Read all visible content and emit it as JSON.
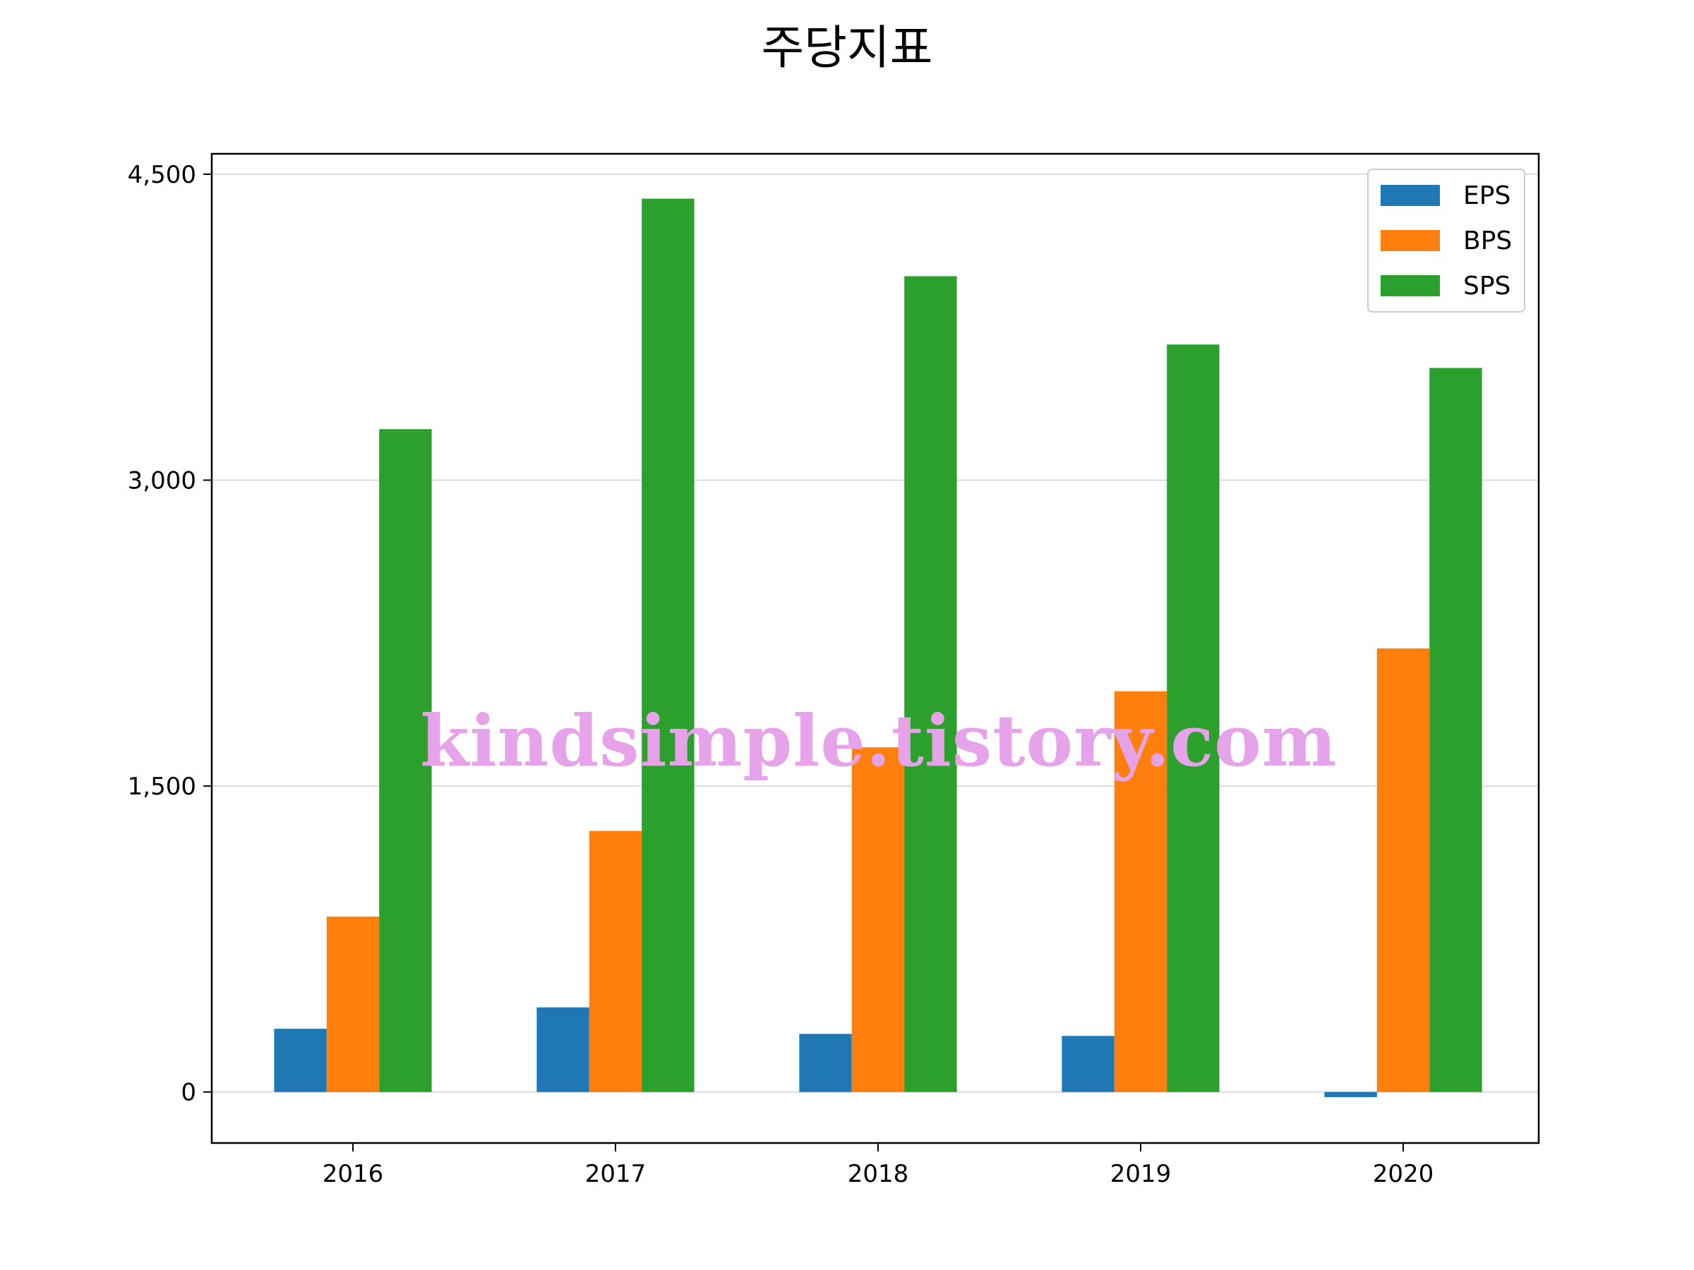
{
  "chart_data": {
    "type": "bar",
    "title": "주당지표",
    "xlabel": "",
    "ylabel": "",
    "categories": [
      "2016",
      "2017",
      "2018",
      "2019",
      "2020"
    ],
    "series": [
      {
        "name": "EPS",
        "color": "#1f77b4",
        "values": [
          310,
          415,
          285,
          275,
          -25
        ]
      },
      {
        "name": "BPS",
        "color": "#ff7f0e",
        "values": [
          860,
          1280,
          1690,
          1965,
          2175
        ]
      },
      {
        "name": "SPS",
        "color": "#2ca02c",
        "values": [
          3250,
          4380,
          4000,
          3665,
          3550
        ]
      }
    ],
    "yticks": [
      0,
      1500,
      3000,
      4500
    ],
    "ytick_labels": [
      "0",
      "1,500",
      "3,000",
      "4,500"
    ],
    "ylim": [
      -250,
      4600
    ],
    "grid": "y",
    "legend_position": "top-right",
    "watermark": "kindsimple.tistory.com"
  }
}
